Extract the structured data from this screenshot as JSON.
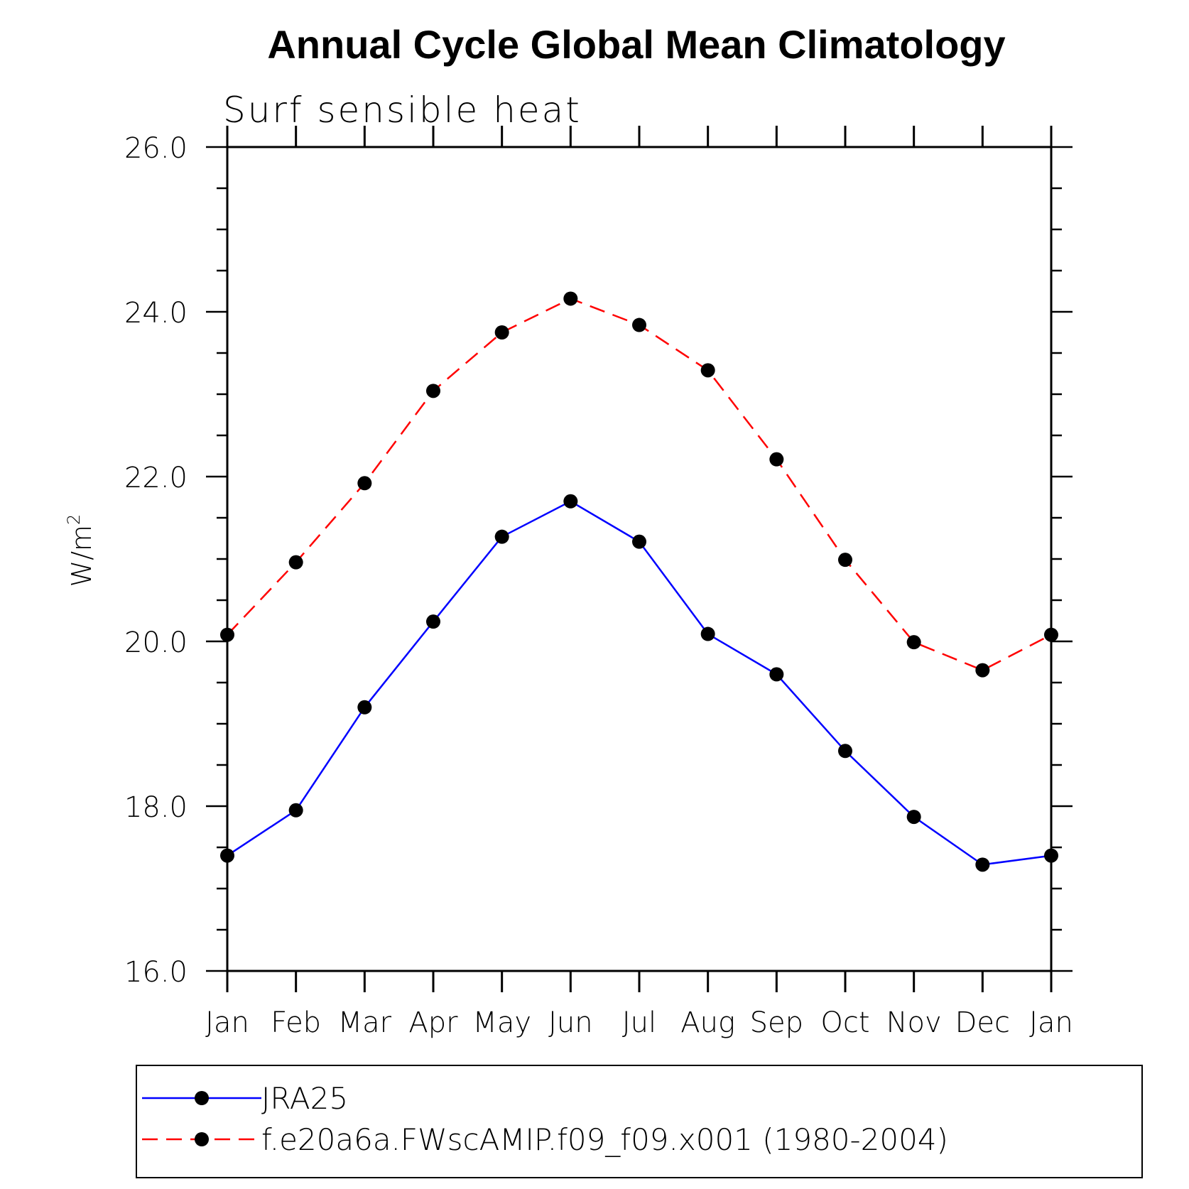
{
  "chart_data": {
    "type": "line",
    "title": "Annual Cycle Global Mean Climatology",
    "subtitle": "Surf sensible heat",
    "ylabel": "W/m",
    "ylabel_superscript": "2",
    "xlabel": "",
    "categories": [
      "Jan",
      "Feb",
      "Mar",
      "Apr",
      "May",
      "Jun",
      "Jul",
      "Aug",
      "Sep",
      "Oct",
      "Nov",
      "Dec",
      "Jan"
    ],
    "ylim": [
      16.0,
      26.0
    ],
    "yticks": [
      "16.0",
      "18.0",
      "20.0",
      "22.0",
      "24.0",
      "26.0"
    ],
    "ytick_values": [
      16,
      18,
      20,
      22,
      24,
      26
    ],
    "grid": false,
    "legend_position": "bottom",
    "series": [
      {
        "name": "JRA25",
        "color": "#0000ff",
        "line_style": "solid",
        "marker": "filled-circle",
        "values": [
          17.4,
          17.95,
          19.2,
          20.24,
          21.27,
          21.7,
          21.21,
          20.09,
          19.6,
          18.67,
          17.87,
          17.29,
          17.4
        ]
      },
      {
        "name": "f.e20a6a.FWscAMIP.f09_f09.x001 (1980-2004)",
        "color": "#ff0000",
        "line_style": "dashed",
        "marker": "filled-circle",
        "values": [
          20.08,
          20.96,
          21.92,
          23.04,
          23.75,
          24.16,
          23.84,
          23.29,
          22.21,
          20.99,
          19.99,
          19.65,
          20.08
        ]
      }
    ]
  }
}
